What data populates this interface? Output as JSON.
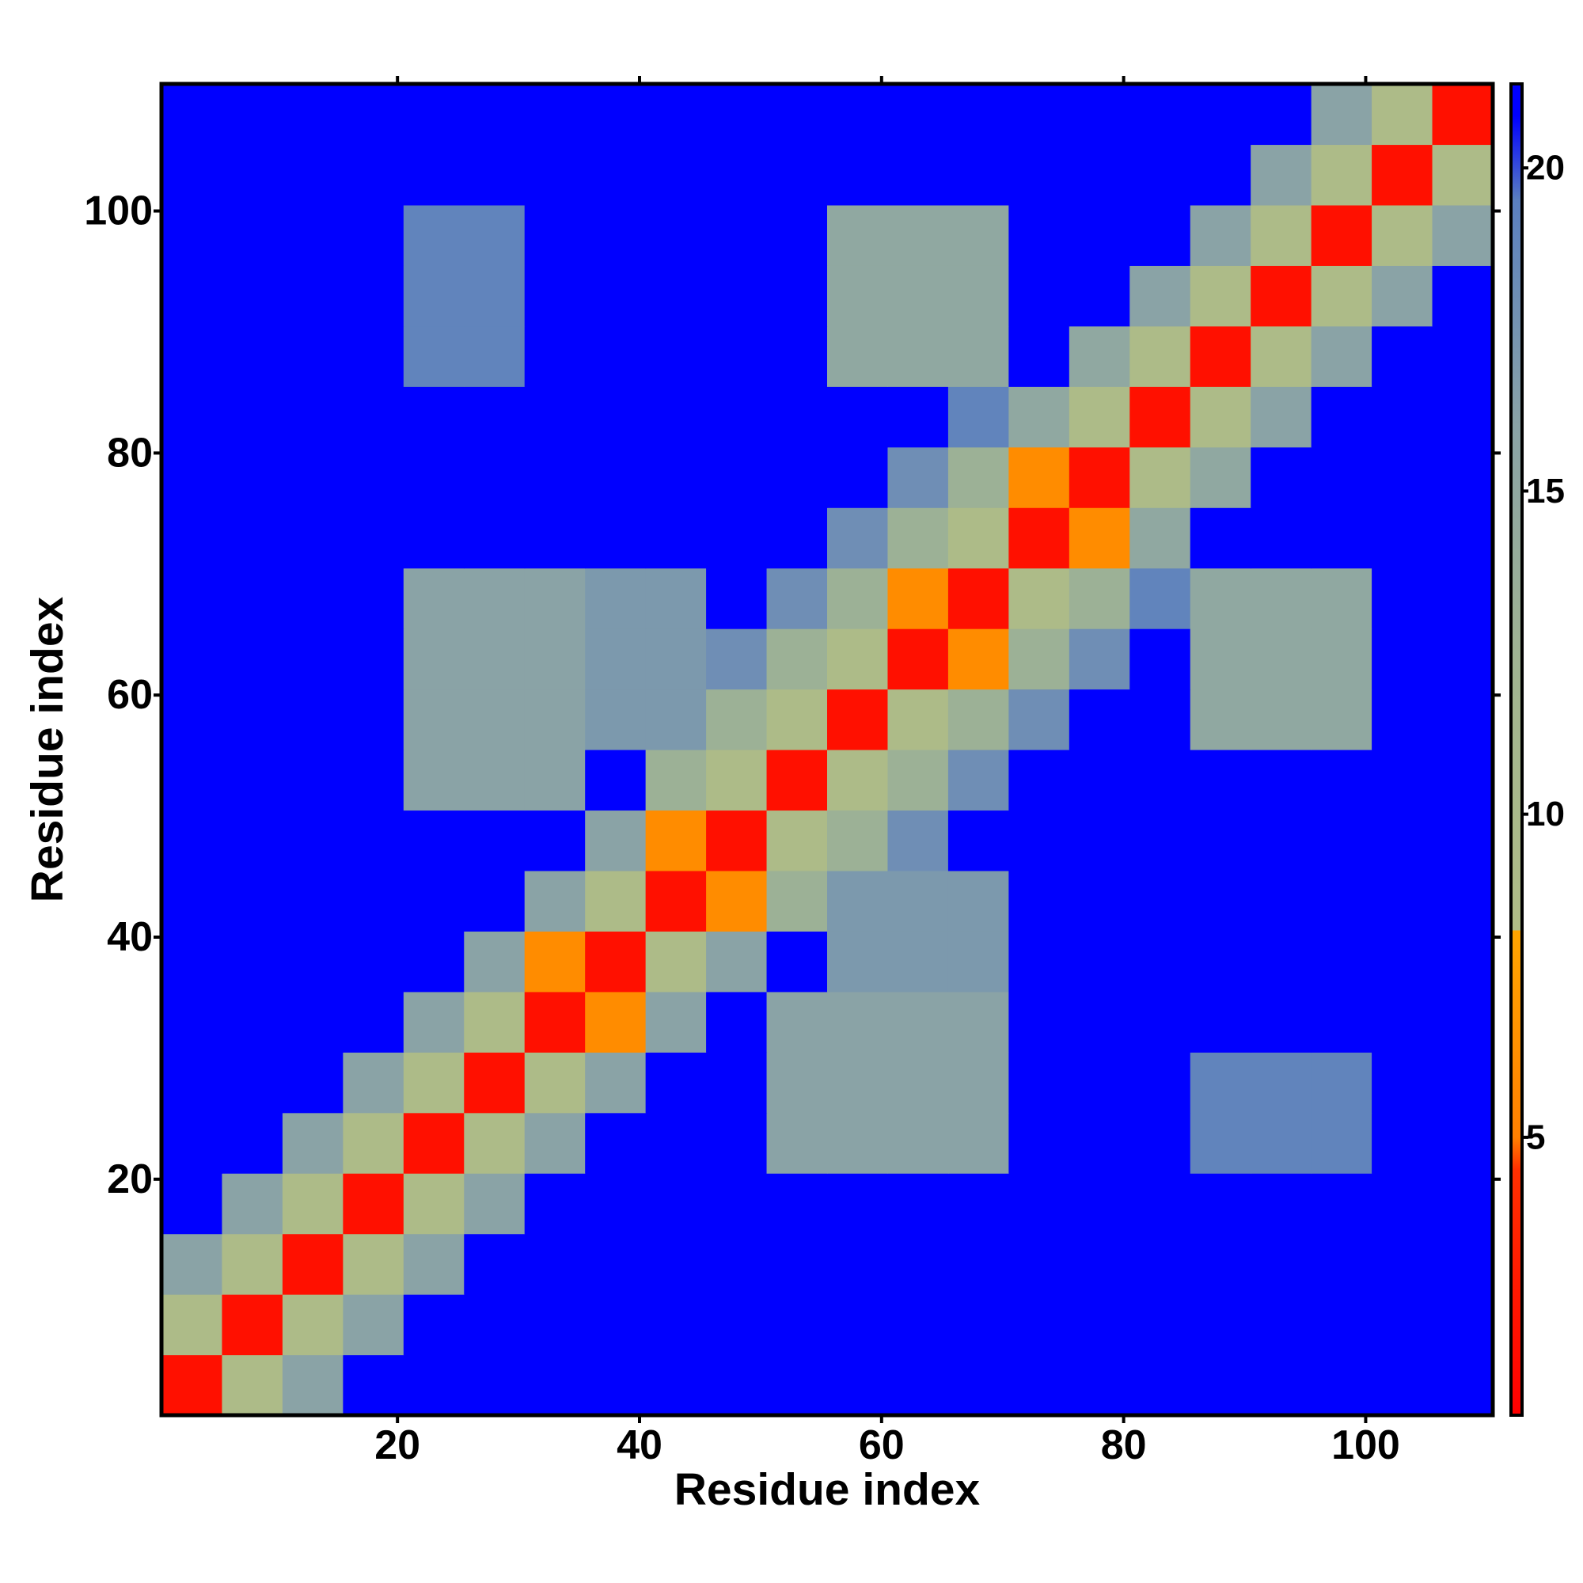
{
  "chart_data": {
    "type": "heatmap",
    "xlabel": "Residue index",
    "ylabel": "Residue index",
    "xbins": [
      0.5,
      5.5,
      10.5,
      15.5,
      20.5,
      25.5,
      30.5,
      35.5,
      40.5,
      45.5,
      50.5,
      55.5,
      60.5,
      65.5,
      70.5,
      75.5,
      80.5,
      85.5,
      90.5,
      95.5,
      100.5,
      105.5,
      110.5
    ],
    "ybins": [
      0.5,
      5.5,
      10.5,
      15.5,
      20.5,
      25.5,
      30.5,
      35.5,
      40.5,
      45.5,
      50.5,
      55.5,
      60.5,
      65.5,
      70.5,
      75.5,
      80.5,
      85.5,
      90.5,
      95.5,
      100.5,
      105.5,
      110.5
    ],
    "xlim": [
      0.5,
      110.5
    ],
    "ylim": [
      0.5,
      110.5
    ],
    "xticks": [
      20,
      40,
      60,
      80,
      100
    ],
    "yticks": [
      20,
      40,
      60,
      80,
      100
    ],
    "z": [
      [
        2,
        9,
        16,
        21,
        21,
        21,
        21,
        21,
        21,
        21,
        21,
        21,
        21,
        21,
        21,
        21,
        21,
        21,
        21,
        21,
        21,
        21
      ],
      [
        9,
        2,
        9,
        16,
        21,
        21,
        21,
        21,
        21,
        21,
        21,
        21,
        21,
        21,
        21,
        21,
        21,
        21,
        21,
        21,
        21,
        21
      ],
      [
        16,
        9,
        2,
        9,
        16,
        21,
        21,
        21,
        21,
        21,
        21,
        21,
        21,
        21,
        21,
        21,
        21,
        21,
        21,
        21,
        21,
        21
      ],
      [
        21,
        16,
        9,
        2,
        9,
        16,
        21,
        21,
        21,
        21,
        21,
        21,
        21,
        21,
        21,
        21,
        21,
        21,
        21,
        21,
        21,
        21
      ],
      [
        21,
        21,
        16,
        9,
        2,
        9,
        16,
        21,
        21,
        21,
        16,
        16,
        16,
        16,
        21,
        21,
        21,
        19,
        19,
        19,
        21,
        21
      ],
      [
        21,
        21,
        21,
        16,
        9,
        2,
        9,
        16,
        21,
        21,
        16,
        16,
        16,
        16,
        21,
        21,
        21,
        19,
        19,
        19,
        21,
        21
      ],
      [
        21,
        21,
        21,
        21,
        16,
        9,
        2,
        6,
        16,
        21,
        16,
        16,
        16,
        16,
        21,
        21,
        21,
        21,
        21,
        21,
        21,
        21
      ],
      [
        21,
        21,
        21,
        21,
        21,
        16,
        6,
        2,
        9,
        16,
        21,
        17,
        17,
        17,
        21,
        21,
        21,
        21,
        21,
        21,
        21,
        21
      ],
      [
        21,
        21,
        21,
        21,
        21,
        21,
        16,
        9,
        2,
        6,
        13,
        17,
        17,
        17,
        21,
        21,
        21,
        21,
        21,
        21,
        21,
        21
      ],
      [
        21,
        21,
        21,
        21,
        21,
        21,
        21,
        16,
        6,
        2,
        9,
        13,
        18,
        21,
        21,
        21,
        21,
        21,
        21,
        21,
        21,
        21
      ],
      [
        21,
        21,
        21,
        21,
        16,
        16,
        16,
        21,
        13,
        9,
        2,
        9,
        13,
        18,
        21,
        21,
        21,
        21,
        21,
        21,
        21,
        21
      ],
      [
        21,
        21,
        21,
        21,
        16,
        16,
        16,
        17,
        17,
        13,
        9,
        2,
        9,
        13,
        18,
        21,
        21,
        15,
        15,
        15,
        21,
        21
      ],
      [
        21,
        21,
        21,
        21,
        16,
        16,
        16,
        17,
        17,
        18,
        13,
        9,
        2,
        6,
        13,
        18,
        21,
        15,
        15,
        15,
        21,
        21
      ],
      [
        21,
        21,
        21,
        21,
        16,
        16,
        16,
        17,
        17,
        21,
        18,
        13,
        6,
        2,
        9,
        13,
        19,
        15,
        15,
        15,
        21,
        21
      ],
      [
        21,
        21,
        21,
        21,
        21,
        21,
        21,
        21,
        21,
        21,
        21,
        18,
        13,
        9,
        2,
        6,
        15,
        21,
        21,
        21,
        21,
        21
      ],
      [
        21,
        21,
        21,
        21,
        21,
        21,
        21,
        21,
        21,
        21,
        21,
        21,
        18,
        13,
        6,
        2,
        9,
        15,
        21,
        21,
        21,
        21
      ],
      [
        21,
        21,
        21,
        21,
        21,
        21,
        21,
        21,
        21,
        21,
        21,
        21,
        21,
        19,
        15,
        9,
        2,
        9,
        16,
        21,
        21,
        21
      ],
      [
        21,
        21,
        21,
        21,
        19,
        19,
        21,
        21,
        21,
        21,
        21,
        15,
        15,
        15,
        21,
        15,
        9,
        2,
        9,
        16,
        21,
        21
      ],
      [
        21,
        21,
        21,
        21,
        19,
        19,
        21,
        21,
        21,
        21,
        21,
        15,
        15,
        15,
        21,
        21,
        16,
        9,
        2,
        9,
        16,
        21
      ],
      [
        21,
        21,
        21,
        21,
        19,
        19,
        21,
        21,
        21,
        21,
        21,
        15,
        15,
        15,
        21,
        21,
        21,
        16,
        9,
        2,
        9,
        16
      ],
      [
        21,
        21,
        21,
        21,
        21,
        21,
        21,
        21,
        21,
        21,
        21,
        21,
        21,
        21,
        21,
        21,
        21,
        21,
        16,
        9,
        2,
        9
      ],
      [
        21,
        21,
        21,
        21,
        21,
        21,
        21,
        21,
        21,
        21,
        21,
        21,
        21,
        21,
        21,
        21,
        21,
        21,
        21,
        16,
        9,
        2
      ]
    ],
    "colorbar": {
      "lim": [
        0.7,
        21.3
      ],
      "ticks": [
        5,
        10,
        15,
        20
      ]
    },
    "colorscale": [
      [
        0.7,
        "#ff0000"
      ],
      [
        4.5,
        "#ff3000"
      ],
      [
        5,
        "#ff8000"
      ],
      [
        8.2,
        "#ffa500"
      ],
      [
        8.2,
        "#b0bd86"
      ],
      [
        12,
        "#a2b590"
      ],
      [
        16,
        "#8aa3a6"
      ],
      [
        19.5,
        "#5a7fc0"
      ],
      [
        20.8,
        "#0000ff"
      ],
      [
        21.3,
        "#0000ff"
      ]
    ]
  }
}
